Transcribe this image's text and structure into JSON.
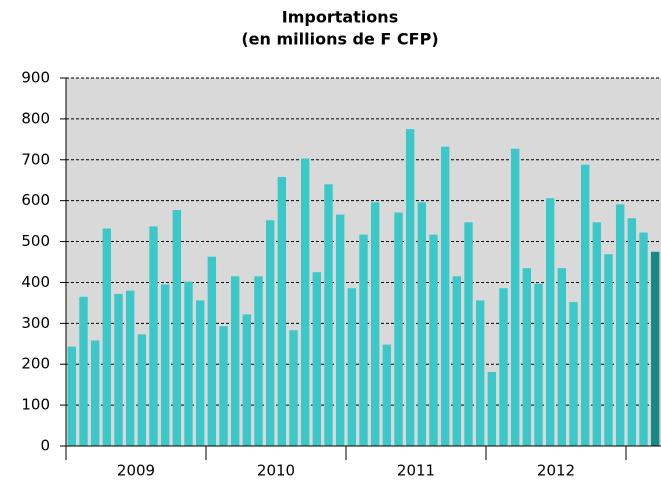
{
  "chart_data": {
    "type": "bar",
    "title": "Importations",
    "subtitle": "(en millions de F CFP)",
    "categories": [
      null,
      null,
      null,
      null,
      null,
      null,
      null,
      null,
      null,
      null,
      null,
      null,
      null,
      null,
      null,
      null,
      null,
      null,
      null,
      null,
      null,
      null,
      null,
      null,
      null,
      null,
      null,
      null,
      null,
      null,
      null,
      null,
      null,
      null,
      null,
      null,
      null,
      null,
      null,
      null,
      null,
      null,
      null,
      null,
      null,
      null,
      null,
      null,
      null,
      null,
      null
    ],
    "year_labels": [
      "2009",
      "2010",
      "2011",
      "2012"
    ],
    "values": [
      243,
      365,
      258,
      532,
      372,
      380,
      273,
      537,
      395,
      577,
      402,
      356,
      463,
      293,
      415,
      322,
      415,
      552,
      658,
      283,
      703,
      425,
      640,
      566,
      386,
      517,
      596,
      248,
      571,
      775,
      596,
      517,
      732,
      415,
      547,
      356,
      181,
      386,
      727,
      435,
      397,
      606,
      435,
      352,
      688,
      547,
      469,
      591,
      557,
      522,
      475
    ],
    "colors": [
      "#3cc8c8",
      "#3cc8c8",
      "#3cc8c8",
      "#3cc8c8",
      "#3cc8c8",
      "#3cc8c8",
      "#3cc8c8",
      "#3cc8c8",
      "#3cc8c8",
      "#3cc8c8",
      "#3cc8c8",
      "#3cc8c8",
      "#3cc8c8",
      "#3cc8c8",
      "#3cc8c8",
      "#3cc8c8",
      "#3cc8c8",
      "#3cc8c8",
      "#3cc8c8",
      "#3cc8c8",
      "#3cc8c8",
      "#3cc8c8",
      "#3cc8c8",
      "#3cc8c8",
      "#3cc8c8",
      "#3cc8c8",
      "#3cc8c8",
      "#3cc8c8",
      "#3cc8c8",
      "#3cc8c8",
      "#3cc8c8",
      "#3cc8c8",
      "#3cc8c8",
      "#3cc8c8",
      "#3cc8c8",
      "#3cc8c8",
      "#3cc8c8",
      "#3cc8c8",
      "#3cc8c8",
      "#3cc8c8",
      "#3cc8c8",
      "#3cc8c8",
      "#3cc8c8",
      "#3cc8c8",
      "#3cc8c8",
      "#3cc8c8",
      "#3cc8c8",
      "#3cc8c8",
      "#3cc8c8",
      "#3cc8c8",
      "#178a86"
    ],
    "ylim": [
      0,
      900
    ],
    "yticks": [
      0,
      100,
      200,
      300,
      400,
      500,
      600,
      700,
      800,
      900
    ],
    "grid": true
  }
}
